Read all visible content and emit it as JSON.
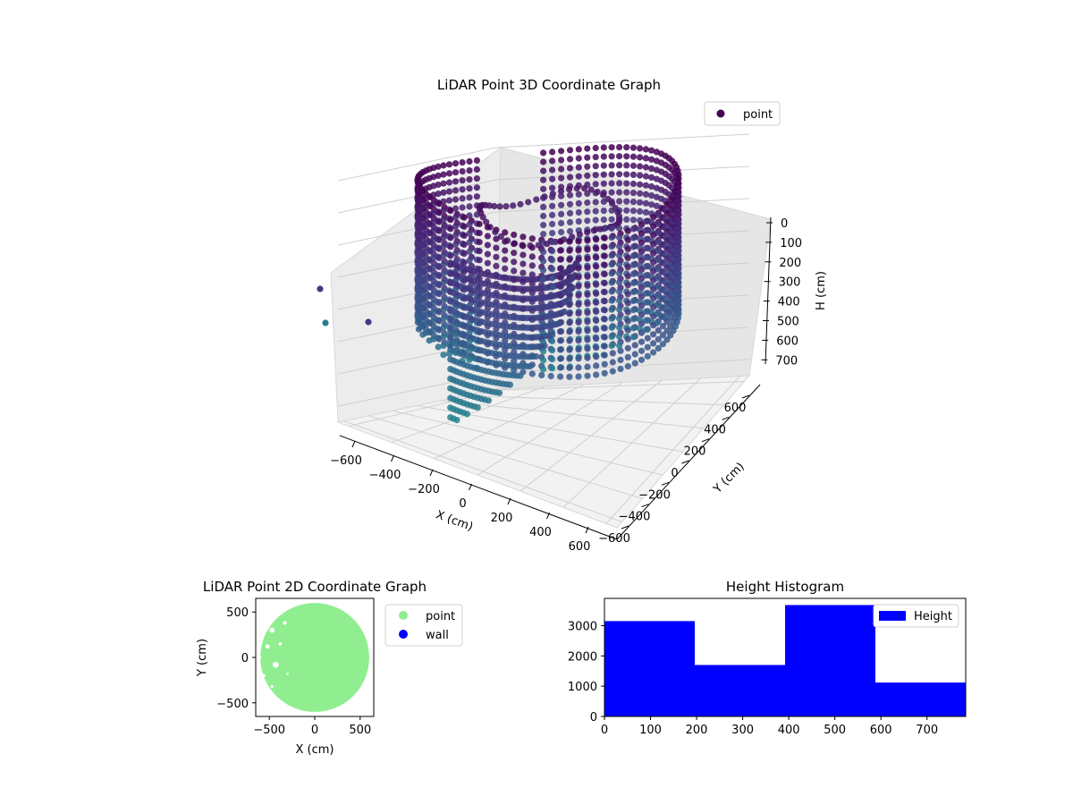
{
  "colors": {
    "viridis_dark": "#440154",
    "viridis_mid": "#3b528b",
    "viridis_teal": "#2a788e",
    "light_green": "#90ee90",
    "wall_blue": "#0000ff",
    "bar_blue": "#0000ff",
    "pane": "#f2f2f2"
  },
  "chart_data": [
    {
      "type": "scatter",
      "projection": "3d",
      "title": "LiDAR Point 3D Coordinate Graph",
      "xlabel": "X (cm)",
      "ylabel": "Y (cm)",
      "zlabel": "H (cm)",
      "xticks": [
        "−600",
        "−400",
        "−200",
        "0",
        "200",
        "400",
        "600"
      ],
      "yticks": [
        "−600",
        "−400",
        "−200",
        "0",
        "200",
        "400",
        "600"
      ],
      "zticks": [
        "0",
        "100",
        "200",
        "300",
        "400",
        "500",
        "600",
        "700"
      ],
      "xlim": [
        -650,
        650
      ],
      "ylim": [
        -650,
        650
      ],
      "zlim": [
        750,
        0
      ],
      "z_inverted": true,
      "legend": [
        {
          "name": "point",
          "color": "#440154"
        }
      ],
      "legend_position": "top-right",
      "colormap": "viridis",
      "grid": true,
      "description_shape": "cylindrical wall of points radius ~600 cm with a spiral ramp descending toward front"
    },
    {
      "type": "scatter",
      "title": "LiDAR Point 2D Coordinate Graph",
      "xlabel": "X (cm)",
      "ylabel": "Y (cm)",
      "xticks": [
        "−500",
        "0",
        "500"
      ],
      "yticks": [
        "−500",
        "0",
        "500"
      ],
      "xlim": [
        -650,
        650
      ],
      "ylim": [
        -650,
        650
      ],
      "series": [
        {
          "name": "point",
          "color": "#90ee90",
          "shape": "filled disc radius ~600"
        },
        {
          "name": "wall",
          "color": "#0000ff"
        }
      ],
      "legend_position": "outside-right"
    },
    {
      "type": "bar",
      "title": "Height Histogram",
      "bins": [
        [
          0,
          196
        ],
        [
          196,
          392
        ],
        [
          392,
          588
        ],
        [
          588,
          784
        ]
      ],
      "values": [
        3150,
        1700,
        3680,
        1120
      ],
      "series": [
        {
          "name": "Height",
          "color": "#0000ff"
        }
      ],
      "xticks": [
        "0",
        "100",
        "200",
        "300",
        "400",
        "500",
        "600",
        "700"
      ],
      "yticks": [
        "0",
        "1000",
        "2000",
        "3000"
      ],
      "xlim": [
        0,
        784
      ],
      "ylim": [
        0,
        3900
      ],
      "legend_position": "top-right"
    }
  ]
}
